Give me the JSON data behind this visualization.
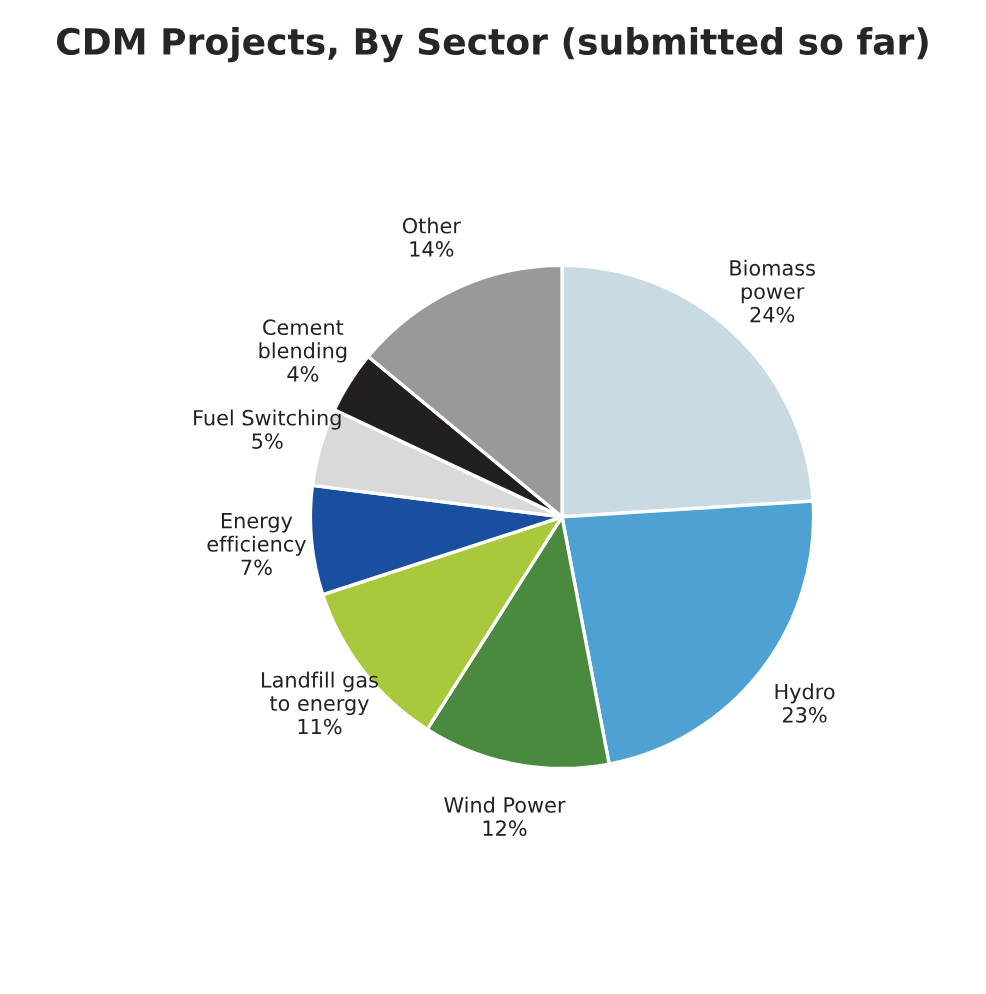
{
  "chart_data": {
    "type": "pie",
    "title": "CDM Projects, By Sector (submitted so far)",
    "categories": [
      "Biomass\npower",
      "Hydro",
      "Wind Power",
      "Landfill gas\nto energy",
      "Energy\nefficiency",
      "Fuel Switching",
      "Cement\nblending",
      "Other"
    ],
    "values": [
      24,
      23,
      12,
      11,
      7,
      5,
      4,
      14
    ],
    "value_labels": [
      "24%",
      "23%",
      "12%",
      "11%",
      "7%",
      "5%",
      "4%",
      "14%"
    ],
    "colors": [
      "#c9dae3",
      "#4ea1d3",
      "#4a8a3e",
      "#a9c83c",
      "#1a4fa0",
      "#d9d9d9",
      "#231f20",
      "#999999"
    ]
  }
}
